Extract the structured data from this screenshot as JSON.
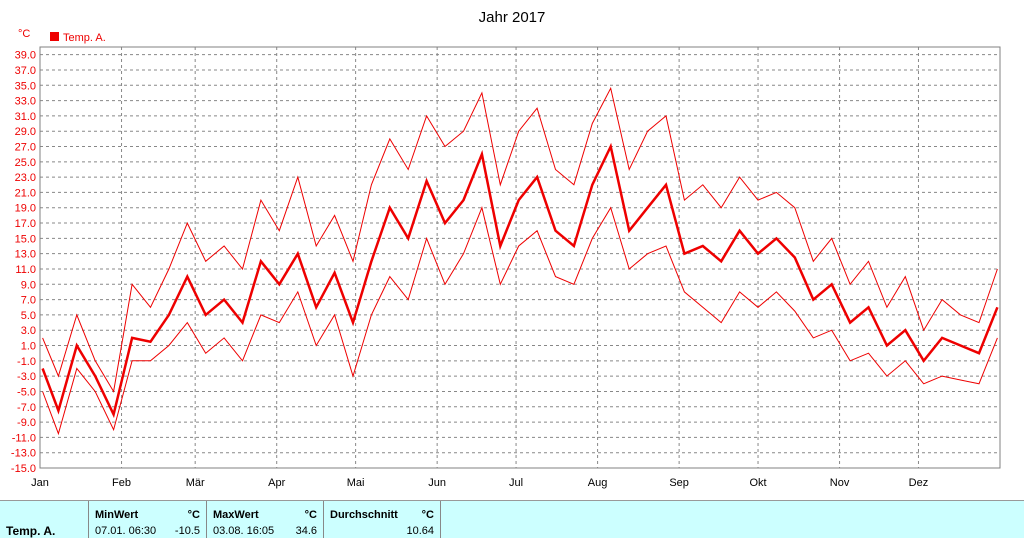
{
  "chart_data": {
    "type": "line",
    "title": "Jahr 2017",
    "ylabel": "°C",
    "ylim": [
      -15.0,
      40.0
    ],
    "yticks": [
      "39.0",
      "37.0",
      "35.0",
      "33.0",
      "31.0",
      "29.0",
      "27.0",
      "25.0",
      "23.0",
      "21.0",
      "19.0",
      "17.0",
      "15.0",
      "13.0",
      "11.0",
      "9.0",
      "7.0",
      "5.0",
      "3.0",
      "1.0",
      "-1.0",
      "-3.0",
      "-5.0",
      "-7.0",
      "-9.0",
      "-11.0",
      "-13.0",
      "-15.0"
    ],
    "month_labels": [
      "Jan",
      "Feb",
      "Mär",
      "Apr",
      "Mai",
      "Jun",
      "Jul",
      "Aug",
      "Sep",
      "Okt",
      "Nov",
      "Dez"
    ],
    "month_start_days": [
      0,
      31,
      59,
      90,
      120,
      151,
      181,
      212,
      243,
      273,
      304,
      334
    ],
    "x_range_days": [
      0,
      365
    ],
    "grid": true,
    "legend_position": "top-left",
    "legend": [
      "Temp. A."
    ],
    "series": [
      {
        "name": "Temp. A.",
        "color": "#ee0000",
        "x": [
          1,
          7,
          14,
          21,
          28,
          35,
          42,
          49,
          56,
          63,
          70,
          77,
          84,
          91,
          98,
          105,
          112,
          119,
          126,
          133,
          140,
          147,
          154,
          161,
          168,
          175,
          182,
          189,
          196,
          203,
          210,
          217,
          224,
          231,
          238,
          245,
          252,
          259,
          266,
          273,
          280,
          287,
          294,
          301,
          308,
          315,
          322,
          329,
          336,
          343,
          350,
          357,
          364
        ],
        "mean": [
          -2.0,
          -7.5,
          1.0,
          -3.0,
          -8.0,
          2.0,
          1.5,
          5.0,
          10.0,
          5.0,
          7.0,
          4.0,
          12.0,
          9.0,
          13.0,
          6.0,
          10.5,
          4.0,
          12.0,
          19.0,
          15.0,
          22.5,
          17.0,
          20.0,
          26.0,
          14.0,
          20.0,
          23.0,
          16.0,
          14.0,
          22.0,
          27.0,
          16.0,
          19.0,
          22.0,
          13.0,
          14.0,
          12.0,
          16.0,
          13.0,
          15.0,
          12.5,
          7.0,
          9.0,
          4.0,
          6.0,
          1.0,
          3.0,
          -1.0,
          2.0,
          1.0,
          0.0,
          6.0
        ],
        "min": [
          -5.0,
          -10.5,
          -2.0,
          -5.0,
          -10.0,
          -1.0,
          -1.0,
          1.0,
          4.0,
          0.0,
          2.0,
          -1.0,
          5.0,
          4.0,
          8.0,
          1.0,
          5.0,
          -3.0,
          5.0,
          10.0,
          7.0,
          15.0,
          9.0,
          13.0,
          19.0,
          9.0,
          14.0,
          16.0,
          10.0,
          9.0,
          15.0,
          19.0,
          11.0,
          13.0,
          14.0,
          8.0,
          6.0,
          4.0,
          8.0,
          6.0,
          8.0,
          5.5,
          2.0,
          3.0,
          -1.0,
          0.0,
          -3.0,
          -1.0,
          -4.0,
          -3.0,
          -3.5,
          -4.0,
          2.0
        ],
        "max": [
          2.0,
          -3.0,
          5.0,
          -1.0,
          -5.0,
          9.0,
          6.0,
          11.0,
          17.0,
          12.0,
          14.0,
          11.0,
          20.0,
          16.0,
          23.0,
          14.0,
          18.0,
          12.0,
          22.0,
          28.0,
          24.0,
          31.0,
          27.0,
          29.0,
          34.0,
          22.0,
          29.0,
          32.0,
          24.0,
          22.0,
          30.0,
          34.6,
          24.0,
          29.0,
          31.0,
          20.0,
          22.0,
          19.0,
          23.0,
          20.0,
          21.0,
          19.0,
          12.0,
          15.0,
          9.0,
          12.0,
          6.0,
          10.0,
          3.0,
          7.0,
          5.0,
          4.0,
          11.0
        ]
      }
    ]
  },
  "stats": {
    "row_label": "Temp. A.",
    "min": {
      "header": "MinWert",
      "unit": "°C",
      "when": "07.01.  06:30",
      "value": "-10.5"
    },
    "max": {
      "header": "MaxWert",
      "unit": "°C",
      "when": "03.08.  16:05",
      "value": "34.6"
    },
    "avg": {
      "header": "Durchschnitt",
      "unit": "°C",
      "value": "10.64"
    }
  },
  "colors": {
    "series": "#ee0000",
    "axis_text": "#ee0000",
    "grid": "#888888",
    "table_bg": "#ccffff"
  }
}
